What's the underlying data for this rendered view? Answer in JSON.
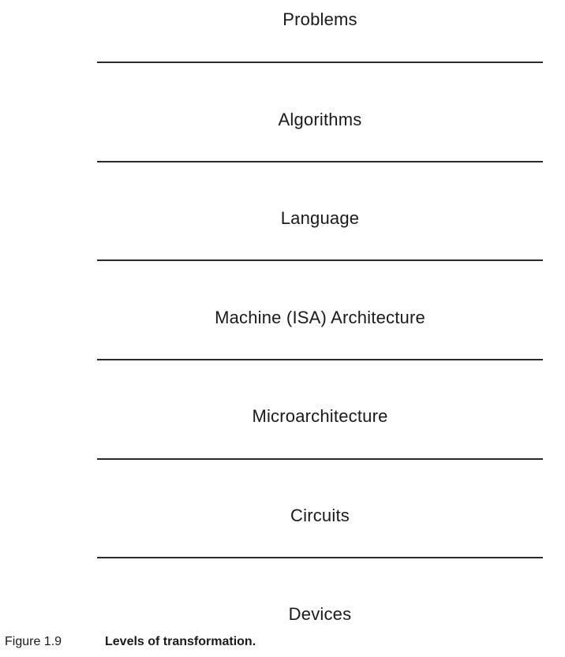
{
  "levels": [
    "Problems",
    "Algorithms",
    "Language",
    "Machine (ISA) Architecture",
    "Microarchitecture",
    "Circuits",
    "Devices"
  ],
  "caption": {
    "number": "Figure 1.9",
    "text": "Levels of transformation."
  }
}
